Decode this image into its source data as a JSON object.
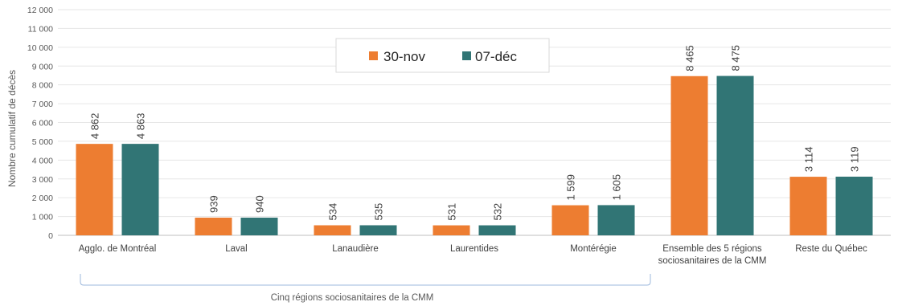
{
  "chart_data": {
    "type": "bar",
    "ylabel": "Nombre cumulatif de décès",
    "ylim": [
      0,
      12000
    ],
    "y_tick_step": 1000,
    "y_tick_labels": [
      "0",
      "1 000",
      "2 000",
      "3 000",
      "4 000",
      "5 000",
      "6 000",
      "7 000",
      "8 000",
      "9 000",
      "10 000",
      "11 000",
      "12 000"
    ],
    "grid": true,
    "legend_position": "top-center",
    "categories": [
      [
        "Agglo. de Montréal"
      ],
      [
        "Laval"
      ],
      [
        "Lanaudière"
      ],
      [
        "Laurentides"
      ],
      [
        "Montérégie"
      ],
      [
        "Ensemble des 5 régions",
        "sociosanitaires de la CMM"
      ],
      [
        "Reste du Québec"
      ]
    ],
    "series": [
      {
        "name": "30-nov",
        "color": "#ED7D31",
        "values": [
          4862,
          939,
          534,
          531,
          1599,
          8465,
          3114
        ],
        "labels": [
          "4 862",
          "939",
          "534",
          "531",
          "1 599",
          "8 465",
          "3 114"
        ]
      },
      {
        "name": "07-déc",
        "color": "#317575",
        "values": [
          4863,
          940,
          535,
          532,
          1605,
          8475,
          3119
        ],
        "labels": [
          "4 863",
          "940",
          "535",
          "532",
          "1 605",
          "8 475",
          "3 119"
        ]
      }
    ],
    "annotation": {
      "text": "Cinq régions sociosanitaires de la CMM",
      "spans_categories": [
        0,
        4
      ]
    }
  }
}
